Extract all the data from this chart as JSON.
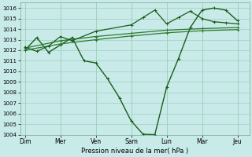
{
  "title": "",
  "xlabel": "Pression niveau de la mer( hPa )",
  "ylim": [
    1004,
    1016.5
  ],
  "yticks": [
    1004,
    1005,
    1006,
    1007,
    1008,
    1009,
    1010,
    1011,
    1012,
    1013,
    1014,
    1015,
    1016
  ],
  "xtick_labels": [
    "Dim",
    "Mer",
    "Ven",
    "Sam",
    "Lun",
    "Mar",
    "Jeu"
  ],
  "xtick_positions": [
    0,
    1.5,
    3.0,
    4.5,
    6.0,
    7.5,
    9.0
  ],
  "xlim": [
    -0.2,
    9.5
  ],
  "background_color": "#c8eae8",
  "grid_color": "#9fcfbe",
  "line_color_dark": "#1a5c1a",
  "line_color_mid": "#2e7a2e",
  "lines": [
    {
      "x": [
        0,
        0.5,
        1.0,
        1.5,
        2.0,
        2.5,
        3.0,
        3.5,
        4.0,
        4.5,
        5.0,
        5.5,
        6.0,
        6.5,
        7.0,
        7.5,
        8.0,
        8.5,
        9.0
      ],
      "y": [
        1012.0,
        1013.2,
        1011.8,
        1012.5,
        1013.2,
        1011.0,
        1010.8,
        1009.3,
        1007.5,
        1005.3,
        1004.05,
        1004.0,
        1008.5,
        1011.2,
        1014.15,
        1015.8,
        1016.0,
        1015.8,
        1014.8
      ],
      "lw": 1.0,
      "color": "#1a5c1a"
    },
    {
      "x": [
        0,
        1.5,
        3.0,
        4.5,
        6.0,
        7.5,
        9.0
      ],
      "y": [
        1012.2,
        1012.9,
        1013.3,
        1013.6,
        1013.9,
        1014.05,
        1014.15
      ],
      "lw": 0.9,
      "color": "#2e7a2e"
    },
    {
      "x": [
        0,
        1.5,
        3.0,
        4.5,
        6.0,
        7.5,
        9.0
      ],
      "y": [
        1012.0,
        1012.6,
        1013.0,
        1013.35,
        1013.65,
        1013.85,
        1013.95
      ],
      "lw": 0.9,
      "color": "#2e7a2e"
    },
    {
      "x": [
        0,
        0.5,
        1.0,
        1.5,
        2.0,
        3.0,
        4.5,
        5.0,
        5.5,
        6.0,
        6.5,
        7.0,
        7.5,
        8.0,
        8.5,
        9.0
      ],
      "y": [
        1012.3,
        1011.9,
        1012.4,
        1013.3,
        1012.9,
        1013.8,
        1014.4,
        1015.1,
        1015.8,
        1014.5,
        1015.1,
        1015.7,
        1015.0,
        1014.7,
        1014.6,
        1014.5
      ],
      "lw": 0.9,
      "color": "#1a5c1a"
    }
  ]
}
